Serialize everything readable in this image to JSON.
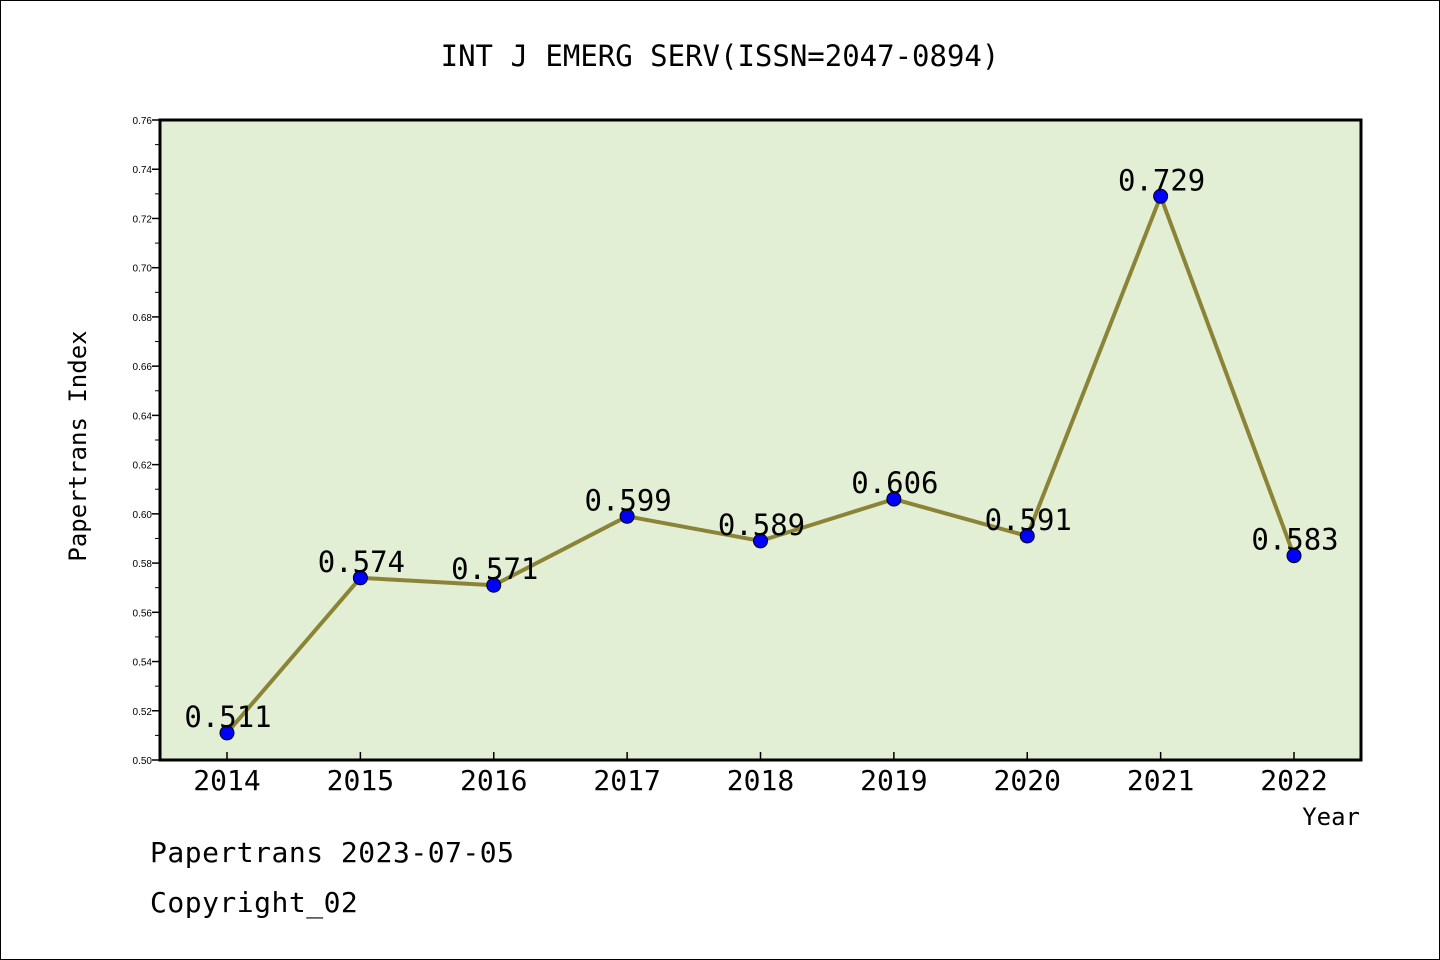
{
  "chart_data": {
    "type": "line",
    "title": "INT J EMERG SERV(ISSN=2047-0894)",
    "xlabel": "Year",
    "ylabel": "Papertrans Index",
    "categories": [
      "2014",
      "2015",
      "2016",
      "2017",
      "2018",
      "2019",
      "2020",
      "2021",
      "2022"
    ],
    "values": [
      0.511,
      0.574,
      0.571,
      0.599,
      0.589,
      0.606,
      0.591,
      0.729,
      0.583
    ],
    "value_labels": [
      "0.511",
      "0.574",
      "0.571",
      "0.599",
      "0.589",
      "0.606",
      "0.591",
      "0.729",
      "0.583"
    ],
    "ylim": [
      0.5,
      0.76
    ],
    "yticks": [
      "0.50",
      "0.52",
      "0.54",
      "0.56",
      "0.58",
      "0.60",
      "0.62",
      "0.64",
      "0.66",
      "0.68",
      "0.70",
      "0.72",
      "0.74",
      "0.76"
    ],
    "grid": false,
    "legend": "none",
    "colors": {
      "plot_background": "#e2efd4",
      "line": "#8b8436",
      "marker": "#0000ff"
    }
  },
  "footer": {
    "line1": "Papertrans 2023-07-05",
    "line2": "Copyright_02"
  }
}
